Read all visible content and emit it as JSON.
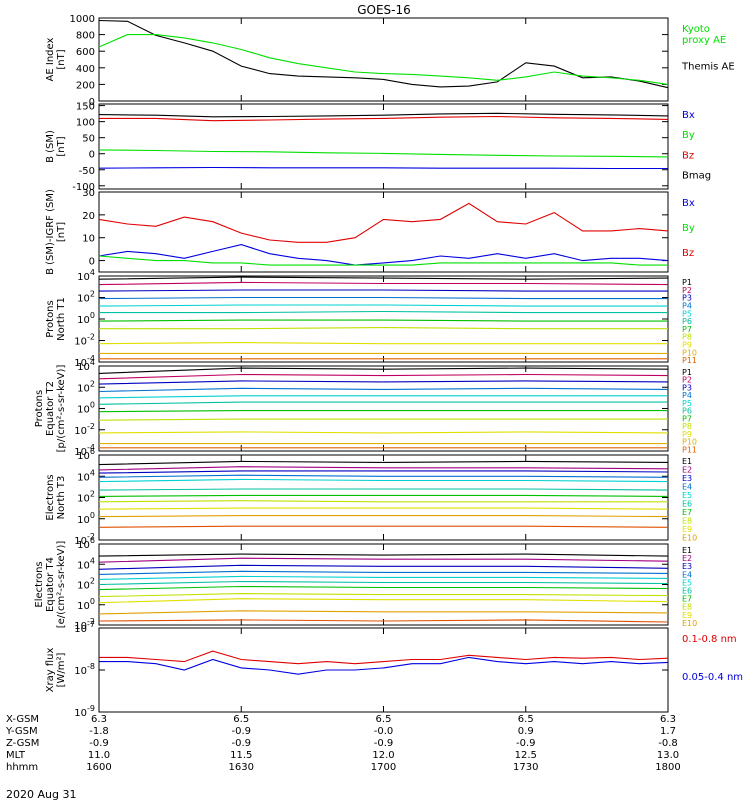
{
  "figure": {
    "title": "GOES-16",
    "date": "2020 Aug 31"
  },
  "colors": {
    "black": "#000000",
    "red": "#e00000",
    "green": "#00e000",
    "blue": "#0000e0",
    "P": [
      "#000000",
      "#c00060",
      "#0000c0",
      "#0070d0",
      "#00d0d0",
      "#00c0a0",
      "#00c000",
      "#c0e000",
      "#e0e000",
      "#e0b000",
      "#e06000",
      "#c00000"
    ],
    "E": [
      "#000000",
      "#a00080",
      "#0000c0",
      "#0070d0",
      "#00d0d0",
      "#00c0a0",
      "#00c000",
      "#c0e000",
      "#e0e000",
      "#e0a000",
      "#e05000",
      "#c00000"
    ]
  },
  "bottom_axis": {
    "rows": [
      {
        "label": "X-GSM",
        "values": [
          "6.3",
          "6.5",
          "6.5",
          "6.5",
          "6.3"
        ]
      },
      {
        "label": "Y-GSM",
        "values": [
          "-1.8",
          "-0.9",
          "-0.0",
          "0.9",
          "1.7"
        ]
      },
      {
        "label": "Z-GSM",
        "values": [
          "-0.9",
          "-0.9",
          "-0.9",
          "-0.9",
          "-0.8"
        ]
      },
      {
        "label": "MLT",
        "values": [
          "11.0",
          "11.5",
          "12.0",
          "12.5",
          "13.0"
        ]
      },
      {
        "label": "hhmm",
        "values": [
          "1600",
          "1630",
          "1700",
          "1730",
          "1800"
        ]
      }
    ]
  },
  "chart_data": [
    {
      "type": "line",
      "id": "ae",
      "ylabel": "AE Index\n[nT]",
      "x": [
        0,
        0.05,
        0.1,
        0.15,
        0.2,
        0.25,
        0.3,
        0.35,
        0.4,
        0.45,
        0.5,
        0.55,
        0.6,
        0.65,
        0.7,
        0.75,
        0.8,
        0.85,
        0.9,
        0.95,
        1
      ],
      "ylim": [
        0,
        1000
      ],
      "yticks": [
        "0",
        "200",
        "400",
        "600",
        "800",
        "1000"
      ],
      "ytick_values": [
        0,
        200,
        400,
        600,
        800,
        1000
      ],
      "yscale": "linear",
      "series": [
        {
          "name": "Themis AE",
          "color": "black",
          "values": [
            970,
            960,
            790,
            700,
            600,
            420,
            330,
            300,
            290,
            280,
            260,
            200,
            170,
            180,
            230,
            460,
            420,
            280,
            290,
            240,
            160
          ]
        },
        {
          "name": "Kyoto proxy AE",
          "color": "green",
          "values": [
            650,
            800,
            800,
            760,
            700,
            620,
            520,
            450,
            400,
            350,
            330,
            320,
            300,
            280,
            250,
            290,
            350,
            300,
            280,
            250,
            200
          ]
        }
      ],
      "legend": [
        {
          "text": "Kyoto\nproxy AE",
          "color": "green"
        },
        {
          "text": "Themis AE",
          "color": "black"
        }
      ]
    },
    {
      "type": "line",
      "id": "b",
      "ylabel": "B (SM)\n[nT]",
      "x": [
        0,
        0.1,
        0.2,
        0.3,
        0.4,
        0.5,
        0.6,
        0.7,
        0.8,
        0.9,
        1
      ],
      "ylim": [
        -110,
        155
      ],
      "yticks": [
        "-100",
        "-50",
        "0",
        "50",
        "100",
        "150"
      ],
      "ytick_values": [
        -100,
        -50,
        0,
        50,
        100,
        150
      ],
      "yscale": "linear",
      "series": [
        {
          "name": "Bmag",
          "color": "black",
          "values": [
            122,
            120,
            115,
            116,
            118,
            120,
            124,
            126,
            123,
            121,
            118
          ]
        },
        {
          "name": "Bz",
          "color": "red",
          "values": [
            110,
            110,
            103,
            105,
            108,
            110,
            114,
            116,
            112,
            110,
            107
          ]
        },
        {
          "name": "By",
          "color": "green",
          "values": [
            12,
            10,
            7,
            6,
            3,
            1,
            -2,
            -5,
            -7,
            -8,
            -10
          ]
        },
        {
          "name": "Bx",
          "color": "blue",
          "values": [
            -45,
            -44,
            -43,
            -44,
            -44,
            -44,
            -45,
            -45,
            -45,
            -46,
            -46
          ]
        }
      ],
      "legend": [
        {
          "text": "Bx",
          "color": "blue"
        },
        {
          "text": "By",
          "color": "green"
        },
        {
          "text": "Bz",
          "color": "red"
        },
        {
          "text": "Bmag",
          "color": "black"
        }
      ]
    },
    {
      "type": "line",
      "id": "db",
      "ylabel": "B (SM)-IGRF (SM)\n[nT]",
      "x": [
        0,
        0.05,
        0.1,
        0.15,
        0.2,
        0.25,
        0.3,
        0.35,
        0.4,
        0.45,
        0.5,
        0.55,
        0.6,
        0.65,
        0.7,
        0.75,
        0.8,
        0.85,
        0.9,
        0.95,
        1
      ],
      "ylim": [
        -5,
        30
      ],
      "yticks": [
        "0",
        "10",
        "20",
        "30"
      ],
      "ytick_values": [
        0,
        10,
        20,
        30
      ],
      "yscale": "linear",
      "series": [
        {
          "name": "Bz",
          "color": "red",
          "values": [
            18,
            16,
            15,
            19,
            17,
            12,
            9,
            8,
            8,
            10,
            18,
            17,
            18,
            25,
            17,
            16,
            21,
            13,
            13,
            14,
            13
          ]
        },
        {
          "name": "Bx",
          "color": "blue",
          "values": [
            2,
            4,
            3,
            1,
            4,
            7,
            3,
            1,
            0,
            -2,
            -1,
            0,
            2,
            1,
            3,
            1,
            3,
            0,
            1,
            1,
            0
          ]
        },
        {
          "name": "By",
          "color": "green",
          "values": [
            2,
            1,
            0,
            0,
            -1,
            -1,
            -2,
            -2,
            -2,
            -2,
            -2,
            -2,
            -1,
            -1,
            -1,
            -1,
            -1,
            -1,
            -1,
            -2,
            -2
          ]
        }
      ],
      "legend": [
        {
          "text": "Bx",
          "color": "blue"
        },
        {
          "text": "By",
          "color": "green"
        },
        {
          "text": "Bz",
          "color": "red"
        }
      ]
    },
    {
      "type": "line",
      "id": "pn",
      "ylabel": "Protons\nNorth T1",
      "x": [
        0,
        0.25,
        0.5,
        0.75,
        1
      ],
      "ylim": [
        -4,
        4
      ],
      "yscale": "log10",
      "yticks": [
        "10^4",
        "10^2",
        "10^0",
        "10^-2",
        "10^-4"
      ],
      "ytick_values": [
        4,
        2,
        0,
        -2,
        -4
      ],
      "series_log10": [
        [
          3.7,
          3.9,
          3.8,
          3.7,
          3.8
        ],
        [
          3.2,
          3.4,
          3.3,
          3.3,
          3.2
        ],
        [
          2.6,
          2.7,
          2.7,
          2.6,
          2.6
        ],
        [
          1.9,
          2.0,
          2.0,
          1.9,
          1.9
        ],
        [
          1.2,
          1.3,
          1.3,
          1.2,
          1.2
        ],
        [
          0.6,
          0.6,
          0.7,
          0.6,
          0.6
        ],
        [
          -0.2,
          -0.1,
          -0.1,
          -0.2,
          -0.2
        ],
        [
          -0.9,
          -0.9,
          -0.8,
          -0.9,
          -0.9
        ],
        [
          -2.3,
          -2.2,
          -2.3,
          -2.3,
          -2.3
        ],
        [
          -3.2,
          -3.2,
          -3.2,
          -3.2,
          -3.2
        ],
        [
          -3.7,
          -3.7,
          -3.7,
          -3.7,
          -3.7
        ]
      ],
      "legend": [
        "P1",
        "P2",
        "P3",
        "P4",
        "P5",
        "P6",
        "P7",
        "P8",
        "P9",
        "P10",
        "P11"
      ]
    },
    {
      "type": "line",
      "id": "pe",
      "ylabel": "Protons\nEquator T2\n[p/(cm²-s-sr-keV)]",
      "x": [
        0,
        0.25,
        0.5,
        0.75,
        1
      ],
      "ylim": [
        -4,
        4
      ],
      "yscale": "log10",
      "yticks": [
        "10^4",
        "10^2",
        "10^0",
        "10^-2",
        "10^-4"
      ],
      "ytick_values": [
        4,
        2,
        0,
        -2,
        -4
      ],
      "series_log10": [
        [
          3.3,
          3.8,
          3.7,
          3.8,
          3.7
        ],
        [
          2.8,
          3.2,
          3.1,
          3.2,
          3.1
        ],
        [
          2.3,
          2.6,
          2.5,
          2.6,
          2.5
        ],
        [
          1.6,
          1.9,
          1.8,
          1.9,
          1.8
        ],
        [
          1.0,
          1.2,
          1.2,
          1.2,
          1.2
        ],
        [
          0.4,
          0.6,
          0.6,
          0.6,
          0.6
        ],
        [
          -0.3,
          -0.2,
          -0.2,
          -0.2,
          -0.2
        ],
        [
          -1.1,
          -1.0,
          -1.0,
          -1.0,
          -1.0
        ],
        [
          -2.3,
          -2.2,
          -2.3,
          -2.2,
          -2.3
        ],
        [
          -3.3,
          -3.3,
          -3.3,
          -3.3,
          -3.3
        ],
        [
          -3.7,
          -3.7,
          -3.7,
          -3.7,
          -3.7
        ]
      ],
      "legend": [
        "P1",
        "P2",
        "P3",
        "P4",
        "P5",
        "P6",
        "P7",
        "P8",
        "P9",
        "P10",
        "P11"
      ]
    },
    {
      "type": "line",
      "id": "en",
      "ylabel": "Electrons\nNorth T3",
      "x": [
        0,
        0.25,
        0.5,
        0.75,
        1
      ],
      "ylim": [
        -2,
        6
      ],
      "yscale": "log10",
      "yticks": [
        "10^6",
        "10^4",
        "10^2",
        "10^0",
        "10^-2"
      ],
      "ytick_values": [
        6,
        4,
        2,
        0,
        -2
      ],
      "series_log10": [
        [
          5.1,
          5.4,
          5.3,
          5.4,
          5.3
        ],
        [
          4.6,
          4.9,
          4.8,
          4.8,
          4.7
        ],
        [
          4.3,
          4.5,
          4.5,
          4.5,
          4.4
        ],
        [
          3.9,
          4.1,
          4.0,
          4.0,
          3.9
        ],
        [
          3.5,
          3.7,
          3.6,
          3.6,
          3.5
        ],
        [
          2.7,
          2.8,
          2.8,
          2.8,
          2.7
        ],
        [
          2.1,
          2.2,
          2.2,
          2.2,
          2.1
        ],
        [
          1.6,
          1.7,
          1.6,
          1.6,
          1.6
        ],
        [
          0.9,
          1.0,
          1.0,
          1.0,
          0.9
        ],
        [
          0.2,
          0.3,
          0.3,
          0.3,
          0.2
        ],
        [
          -0.8,
          -0.7,
          -0.7,
          -0.7,
          -0.8
        ]
      ],
      "legend": [
        "E1",
        "E2",
        "E3",
        "E4",
        "E5",
        "E6",
        "E7",
        "E8",
        "E9",
        "E10"
      ]
    },
    {
      "type": "line",
      "id": "ee",
      "ylabel": "Electrons\nEquator T4\n[e/(cm²-s-sr-keV)]",
      "x": [
        0,
        0.25,
        0.5,
        0.75,
        1
      ],
      "ylim": [
        -2,
        6
      ],
      "yscale": "log10",
      "yticks": [
        "10^6",
        "10^4",
        "10^2",
        "10^0",
        "10^-2"
      ],
      "ytick_values": [
        6,
        4,
        2,
        0,
        -2
      ],
      "series_log10": [
        [
          4.8,
          5.0,
          4.9,
          5.0,
          4.8
        ],
        [
          4.2,
          4.6,
          4.5,
          4.5,
          4.3
        ],
        [
          3.5,
          3.9,
          3.8,
          3.8,
          3.6
        ],
        [
          3.0,
          3.3,
          3.2,
          3.2,
          3.1
        ],
        [
          2.5,
          2.8,
          2.7,
          2.7,
          2.6
        ],
        [
          2.0,
          2.3,
          2.2,
          2.2,
          2.1
        ],
        [
          1.5,
          1.8,
          1.7,
          1.7,
          1.6
        ],
        [
          0.8,
          1.1,
          1.0,
          1.0,
          0.9
        ],
        [
          0.2,
          0.6,
          0.5,
          0.5,
          0.3
        ],
        [
          -0.9,
          -0.6,
          -0.7,
          -0.7,
          -0.8
        ],
        [
          -1.6,
          -1.5,
          -1.6,
          -1.5,
          -1.7
        ]
      ],
      "legend": [
        "E1",
        "E2",
        "E3",
        "E4",
        "E5",
        "E6",
        "E7",
        "E8",
        "E9",
        "E10"
      ]
    },
    {
      "type": "line",
      "id": "xray",
      "ylabel": "Xray flux\n[W/m²]",
      "x": [
        0,
        0.05,
        0.1,
        0.15,
        0.2,
        0.25,
        0.3,
        0.35,
        0.4,
        0.45,
        0.5,
        0.55,
        0.6,
        0.65,
        0.7,
        0.75,
        0.8,
        0.85,
        0.9,
        0.95,
        1
      ],
      "ylim": [
        -9,
        -7
      ],
      "yscale": "log10",
      "yticks": [
        "10^-7",
        "10^-8",
        "10^-9"
      ],
      "ytick_values": [
        -7,
        -8,
        -9
      ],
      "series": [
        {
          "name": "0.1-0.8 nm",
          "color": "red",
          "log10": [
            -7.7,
            -7.7,
            -7.75,
            -7.8,
            -7.55,
            -7.75,
            -7.8,
            -7.85,
            -7.8,
            -7.85,
            -7.8,
            -7.75,
            -7.75,
            -7.65,
            -7.7,
            -7.75,
            -7.7,
            -7.72,
            -7.7,
            -7.75,
            -7.72
          ]
        },
        {
          "name": "0.05-0.4 nm",
          "color": "blue",
          "log10": [
            -7.8,
            -7.8,
            -7.85,
            -8.0,
            -7.75,
            -7.95,
            -8.0,
            -8.1,
            -8.0,
            -8.0,
            -7.95,
            -7.85,
            -7.85,
            -7.7,
            -7.8,
            -7.85,
            -7.8,
            -7.85,
            -7.8,
            -7.85,
            -7.82
          ]
        }
      ],
      "legend": [
        {
          "text": "0.1-0.8 nm",
          "color": "red"
        },
        {
          "text": "0.05-0.4 nm",
          "color": "blue"
        }
      ]
    }
  ]
}
